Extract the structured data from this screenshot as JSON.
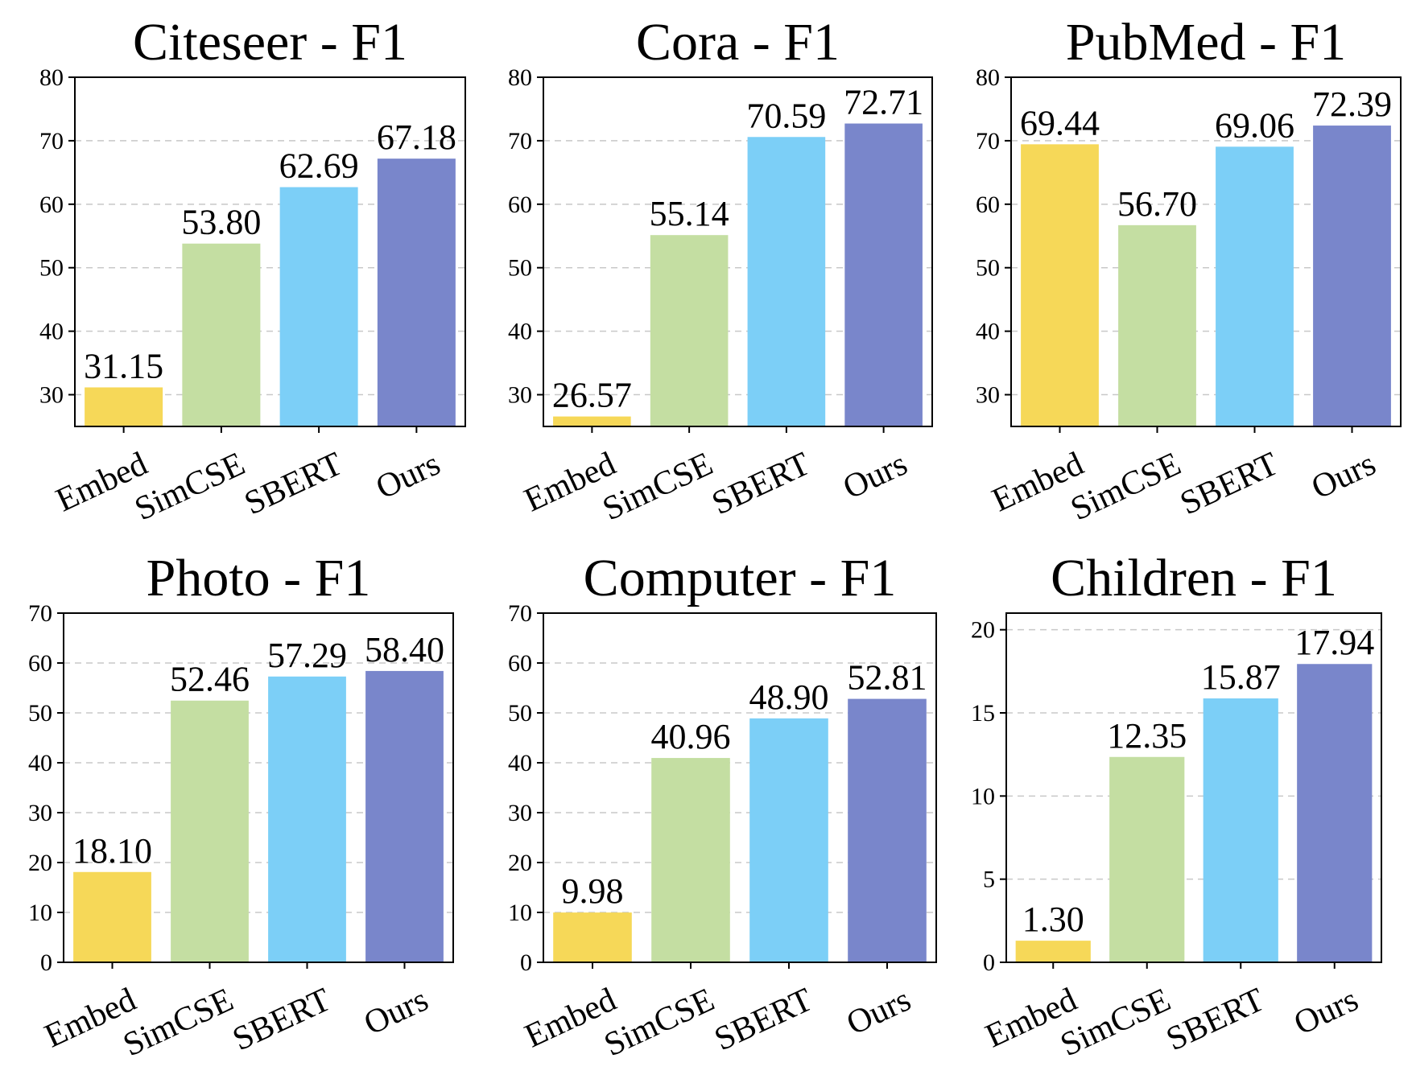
{
  "chart_data": [
    {
      "type": "bar",
      "title": "Citeseer - F1",
      "categories": [
        "Embed",
        "SimCSE",
        "SBERT",
        "Ours"
      ],
      "values": [
        31.15,
        53.8,
        62.69,
        67.18
      ],
      "value_labels": [
        "31.15",
        "53.80",
        "62.69",
        "67.18"
      ],
      "ylim": [
        25,
        80
      ],
      "yticks": [
        30,
        40,
        50,
        60,
        70,
        80
      ],
      "grid": true
    },
    {
      "type": "bar",
      "title": "Cora - F1",
      "categories": [
        "Embed",
        "SimCSE",
        "SBERT",
        "Ours"
      ],
      "values": [
        26.57,
        55.14,
        70.59,
        72.71
      ],
      "value_labels": [
        "26.57",
        "55.14",
        "70.59",
        "72.71"
      ],
      "ylim": [
        25,
        80
      ],
      "yticks": [
        30,
        40,
        50,
        60,
        70,
        80
      ],
      "grid": true
    },
    {
      "type": "bar",
      "title": "PubMed - F1",
      "categories": [
        "Embed",
        "SimCSE",
        "SBERT",
        "Ours"
      ],
      "values": [
        69.44,
        56.7,
        69.06,
        72.39
      ],
      "value_labels": [
        "69.44",
        "56.70",
        "69.06",
        "72.39"
      ],
      "ylim": [
        25,
        80
      ],
      "yticks": [
        30,
        40,
        50,
        60,
        70,
        80
      ],
      "grid": true
    },
    {
      "type": "bar",
      "title": "Photo - F1",
      "categories": [
        "Embed",
        "SimCSE",
        "SBERT",
        "Ours"
      ],
      "values": [
        18.1,
        52.46,
        57.29,
        58.4
      ],
      "value_labels": [
        "18.10",
        "52.46",
        "57.29",
        "58.40"
      ],
      "ylim": [
        0,
        70
      ],
      "yticks": [
        0,
        10,
        20,
        30,
        40,
        50,
        60,
        70
      ],
      "grid": true
    },
    {
      "type": "bar",
      "title": "Computer - F1",
      "categories": [
        "Embed",
        "SimCSE",
        "SBERT",
        "Ours"
      ],
      "values": [
        9.98,
        40.96,
        48.9,
        52.81
      ],
      "value_labels": [
        "9.98",
        "40.96",
        "48.90",
        "52.81"
      ],
      "ylim": [
        0,
        70
      ],
      "yticks": [
        0,
        10,
        20,
        30,
        40,
        50,
        60,
        70
      ],
      "grid": true
    },
    {
      "type": "bar",
      "title": "Children - F1",
      "categories": [
        "Embed",
        "SimCSE",
        "SBERT",
        "Ours"
      ],
      "values": [
        1.3,
        12.35,
        15.87,
        17.94
      ],
      "value_labels": [
        "1.30",
        "12.35",
        "15.87",
        "17.94"
      ],
      "ylim": [
        0,
        21
      ],
      "yticks": [
        0,
        5,
        10,
        15,
        20
      ],
      "grid": true
    }
  ],
  "colors": {
    "Embed": "#f6d858",
    "SimCSE": "#c4dea2",
    "SBERT": "#7ccff7",
    "Ours": "#7986cb"
  }
}
